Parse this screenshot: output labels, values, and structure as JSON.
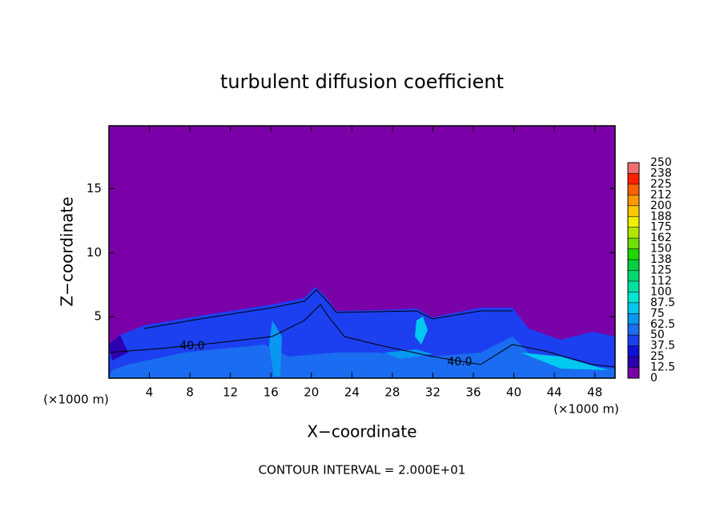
{
  "chart_data": {
    "type": "contour",
    "title": "turbulent diffusion coefficient",
    "x_label": "X−coordinate",
    "y_label": "Z−coordinate",
    "x_unit_label": "(×1000 m)",
    "footer": "CONTOUR INTERVAL = 2.000E+01",
    "contour_labels": [
      "40.0",
      "40.0"
    ],
    "xlim": [
      0,
      50
    ],
    "xticks": [
      4,
      8,
      12,
      16,
      20,
      24,
      28,
      32,
      36,
      40,
      44,
      48
    ],
    "ylim": [
      0.2,
      19.9
    ],
    "yticks": [
      5,
      10,
      15
    ],
    "colorbar": {
      "ticks": [
        0,
        12.5,
        25,
        37.5,
        50,
        62.5,
        75,
        87.5,
        100,
        {
          "value": 112.5,
          "label": "112"
        },
        125,
        {
          "value": 137.5,
          "label": "138"
        },
        150,
        {
          "value": 162.5,
          "label": "162"
        },
        175,
        {
          "value": 187.5,
          "label": "188"
        },
        200,
        {
          "value": 212.5,
          "label": "212"
        },
        225,
        {
          "value": 237.5,
          "label": "238"
        },
        250
      ],
      "colors": [
        "#7a00a8",
        "#2a00b0",
        "#1010d8",
        "#1c40f0",
        "#1a6cf0",
        "#0898f0",
        "#00c8f0",
        "#00e8d0",
        "#00e0a0",
        "#00d870",
        "#00d040",
        "#20d800",
        "#70e000",
        "#b0e800",
        "#f0f000",
        "#ffc800",
        "#ff9800",
        "#ff6000",
        "#ff2000",
        "#f07070"
      ]
    }
  }
}
